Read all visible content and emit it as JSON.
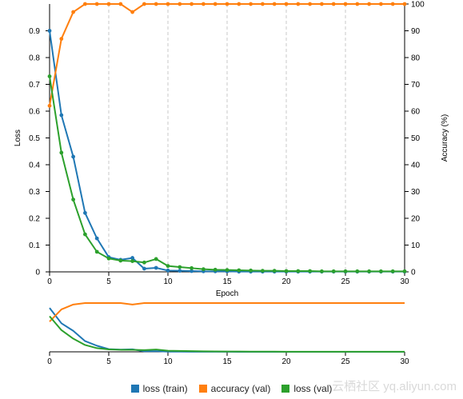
{
  "chart_data": [
    {
      "type": "line",
      "role": "main",
      "xlabel": "Epoch",
      "ylabel_left": "Loss",
      "ylabel_right": "Accuracy (%)",
      "xlim": [
        0,
        30
      ],
      "ylim_left": [
        0,
        1.0
      ],
      "ylim_right": [
        0,
        100
      ],
      "x_ticks": [
        0,
        5,
        10,
        15,
        20,
        25,
        30
      ],
      "y_ticks_left": [
        "0",
        "0.1",
        "0.2",
        "0.3",
        "0.4",
        "0.5",
        "0.6",
        "0.7",
        "0.8",
        "0.9"
      ],
      "y_ticks_left_values": [
        0,
        0.1,
        0.2,
        0.3,
        0.4,
        0.5,
        0.6,
        0.7,
        0.8,
        0.9
      ],
      "y_ticks_right": [
        0,
        10,
        20,
        30,
        40,
        50,
        60,
        70,
        80,
        90,
        100
      ],
      "grid": "vertical dashed at x ticks",
      "series": [
        {
          "name": "loss (train)",
          "axis": "left",
          "color": "#1f77b4",
          "x": [
            0,
            1,
            2,
            3,
            4,
            5,
            6,
            7,
            8,
            9,
            10,
            11,
            12,
            13,
            14,
            15,
            16,
            17,
            18,
            19,
            20,
            21,
            22,
            23,
            24,
            25,
            26,
            27,
            28,
            29,
            30
          ],
          "values": [
            0.9,
            0.585,
            0.43,
            0.22,
            0.125,
            0.055,
            0.045,
            0.052,
            0.012,
            0.015,
            0.005,
            0.004,
            0.003,
            0.002,
            0.002,
            0.002,
            0.001,
            0.001,
            0.001,
            0.001,
            0.001,
            0.001,
            0.001,
            0.001,
            0.001,
            0.001,
            0.001,
            0.001,
            0.001,
            0.001,
            0.001
          ]
        },
        {
          "name": "accuracy (val)",
          "axis": "right",
          "color": "#ff7f0e",
          "x": [
            0,
            1,
            2,
            3,
            4,
            5,
            6,
            7,
            8,
            9,
            10,
            11,
            12,
            13,
            14,
            15,
            16,
            17,
            18,
            19,
            20,
            21,
            22,
            23,
            24,
            25,
            26,
            27,
            28,
            29,
            30
          ],
          "values": [
            62,
            87,
            97,
            100,
            100,
            100,
            100,
            97,
            100,
            100,
            100,
            100,
            100,
            100,
            100,
            100,
            100,
            100,
            100,
            100,
            100,
            100,
            100,
            100,
            100,
            100,
            100,
            100,
            100,
            100,
            100
          ]
        },
        {
          "name": "loss (val)",
          "axis": "left",
          "color": "#2ca02c",
          "x": [
            0,
            1,
            2,
            3,
            4,
            5,
            6,
            7,
            8,
            9,
            10,
            11,
            12,
            13,
            14,
            15,
            16,
            17,
            18,
            19,
            20,
            21,
            22,
            23,
            24,
            25,
            26,
            27,
            28,
            29,
            30
          ],
          "values": [
            0.73,
            0.445,
            0.27,
            0.14,
            0.075,
            0.05,
            0.042,
            0.04,
            0.035,
            0.048,
            0.022,
            0.018,
            0.014,
            0.01,
            0.008,
            0.007,
            0.006,
            0.005,
            0.004,
            0.004,
            0.003,
            0.003,
            0.003,
            0.002,
            0.002,
            0.002,
            0.002,
            0.002,
            0.002,
            0.002,
            0.002
          ]
        }
      ]
    },
    {
      "type": "line",
      "role": "overview",
      "xlim": [
        0,
        30
      ],
      "x_ticks": [
        0,
        5,
        10,
        15,
        20,
        25,
        30
      ],
      "series_ref": "main"
    }
  ],
  "legend": [
    {
      "label": "loss (train)",
      "color": "#1f77b4"
    },
    {
      "label": "accuracy (val)",
      "color": "#ff7f0e"
    },
    {
      "label": "loss (val)",
      "color": "#2ca02c"
    }
  ],
  "watermark": "云栖社区 yq.aliyun.com"
}
